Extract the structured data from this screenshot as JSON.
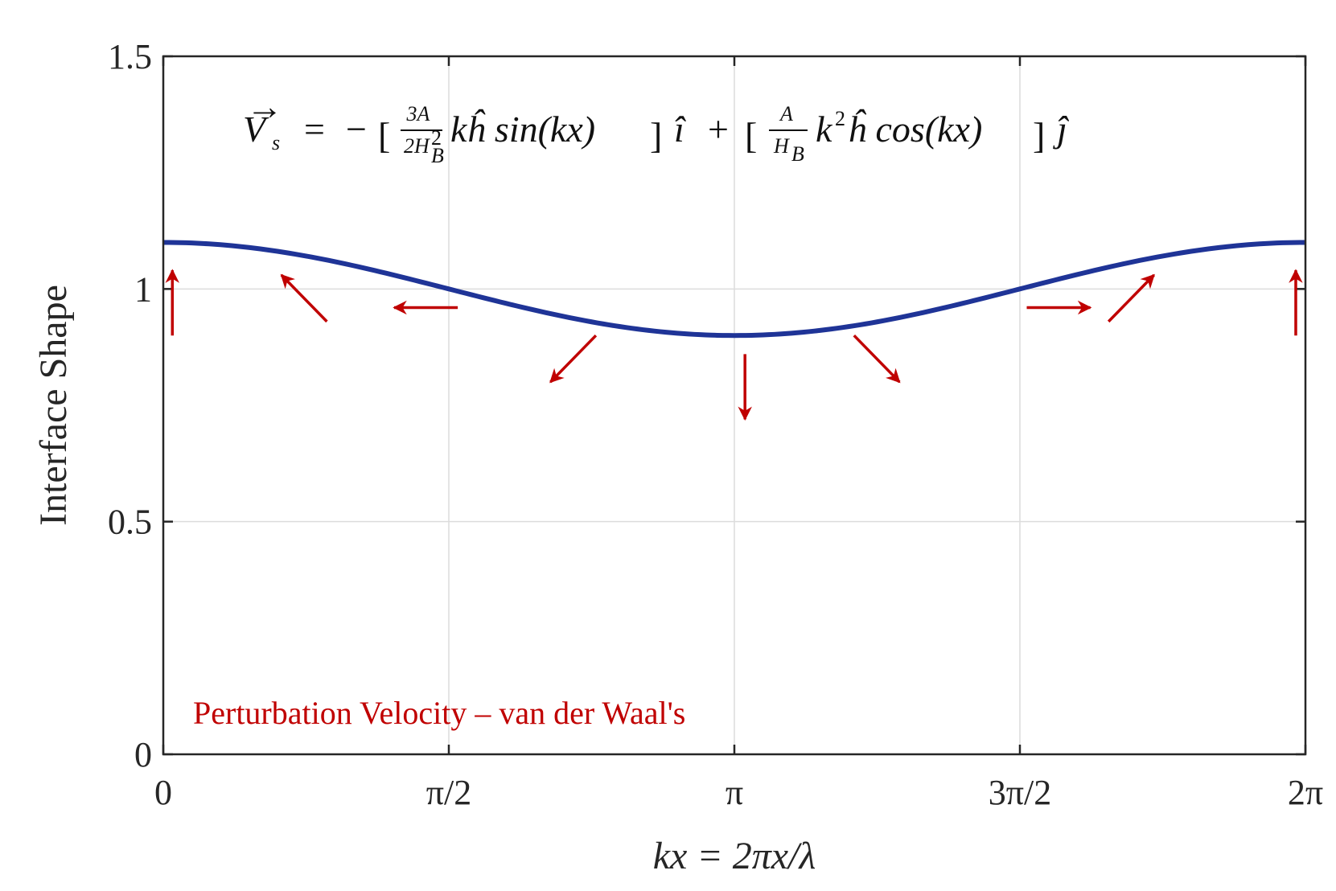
{
  "chart_data": {
    "type": "line",
    "xlabel": "kx = 2πx/λ",
    "ylabel": "Interface Shape",
    "xlim": [
      0,
      6.283185
    ],
    "ylim": [
      0,
      1.5
    ],
    "x_ticks": [
      {
        "value": 0,
        "label": "0"
      },
      {
        "value": 1.570796,
        "label": "π/2"
      },
      {
        "value": 3.141593,
        "label": "π"
      },
      {
        "value": 4.712389,
        "label": "3π/2"
      },
      {
        "value": 6.283185,
        "label": "2π"
      }
    ],
    "y_ticks": [
      {
        "value": 0,
        "label": "0"
      },
      {
        "value": 0.5,
        "label": "0.5"
      },
      {
        "value": 1,
        "label": "1"
      },
      {
        "value": 1.5,
        "label": "1.5"
      }
    ],
    "grid": true,
    "series": [
      {
        "function": "1 + 0.1*cos(kx)",
        "mean": 1.0,
        "amplitude": 0.1,
        "color": "#1f3497",
        "x": [
          0,
          0.785398,
          1.570796,
          2.356194,
          3.141593,
          3.926991,
          4.712389,
          5.497787,
          6.283185
        ],
        "y": [
          1.1,
          1.0707,
          1.0,
          0.9293,
          0.9,
          0.9293,
          1.0,
          1.0707,
          1.1
        ]
      }
    ],
    "arrows": {
      "color": "#c00000",
      "items": [
        {
          "x": 0.05,
          "y": 0.9,
          "dx": 0.0,
          "dy": 0.14
        },
        {
          "x": 0.9,
          "y": 0.93,
          "dx": -0.25,
          "dy": 0.1
        },
        {
          "x": 1.62,
          "y": 0.96,
          "dx": -0.35,
          "dy": 0.0
        },
        {
          "x": 2.38,
          "y": 0.9,
          "dx": -0.25,
          "dy": -0.1
        },
        {
          "x": 3.2,
          "y": 0.86,
          "dx": 0.0,
          "dy": -0.14
        },
        {
          "x": 3.8,
          "y": 0.9,
          "dx": 0.25,
          "dy": -0.1
        },
        {
          "x": 4.75,
          "y": 0.96,
          "dx": 0.35,
          "dy": 0.0
        },
        {
          "x": 5.2,
          "y": 0.93,
          "dx": 0.25,
          "dy": 0.1
        },
        {
          "x": 6.23,
          "y": 0.9,
          "dx": 0.0,
          "dy": 0.14
        }
      ]
    },
    "annotation": "Perturbation Velocity – van der Waal's",
    "annotation_color": "#c00000",
    "equation": {
      "lhs": "V",
      "lhs_sub": "s",
      "equals": "=",
      "minus": "−",
      "lbracket": "[",
      "rbracket": "]",
      "frac1_num": "3A",
      "frac1_den": "2H",
      "frac1_den_sup": "2",
      "frac1_den_sub": "B",
      "term1": "kĥ sin(kx)",
      "unit_i": "î",
      "plus": "+",
      "frac2_num": "A",
      "frac2_den": "H",
      "frac2_den_sub": "B",
      "term2_k": "k",
      "term2_sup": "2",
      "term2": "ĥ cos(kx)",
      "unit_j": "ĵ"
    }
  }
}
